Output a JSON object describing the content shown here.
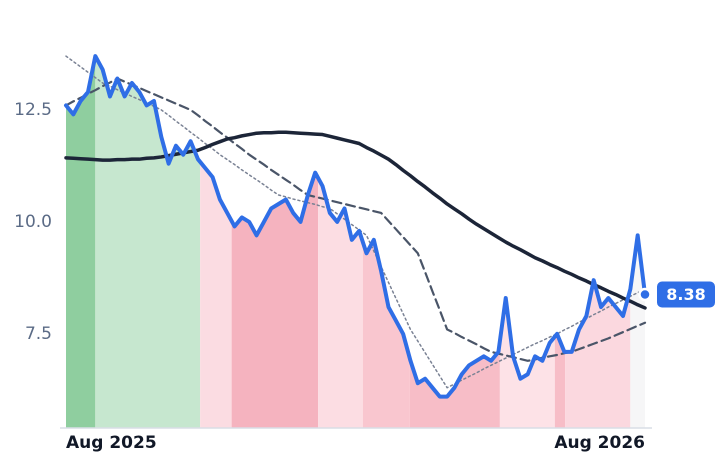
{
  "chart_data": {
    "type": "line",
    "categories": [
      "Aug 2025",
      null,
      null,
      null,
      null,
      null,
      null,
      null,
      null,
      null,
      null,
      null,
      null,
      null,
      null,
      null,
      null,
      null,
      null,
      null,
      null,
      null,
      null,
      null,
      null,
      null,
      null,
      null,
      null,
      null,
      null,
      null,
      null,
      null,
      null,
      null,
      null,
      null,
      null,
      null,
      null,
      null,
      null,
      null,
      null,
      null,
      null,
      null,
      null,
      null,
      null,
      null,
      null,
      null,
      null,
      null,
      null,
      null,
      null,
      null,
      null,
      null,
      null,
      null,
      null,
      null,
      null,
      null,
      null,
      null,
      null,
      null,
      null,
      null,
      null,
      null,
      null,
      null,
      null,
      "Aug 2026"
    ],
    "ylim": [
      5.4,
      14.06
    ],
    "yticks": [
      7.5,
      {
        "value": 10,
        "label": "10.0"
      },
      12.5
    ],
    "grid": false,
    "series": [
      {
        "color": "#2f6ee6",
        "width": 4,
        "dash": "solid",
        "values": [
          12.6,
          12.4,
          12.7,
          12.9,
          13.7,
          13.4,
          12.8,
          13.2,
          12.8,
          13.1,
          12.9,
          12.6,
          12.7,
          11.9,
          11.3,
          11.7,
          11.5,
          11.8,
          11.4,
          11.2,
          11.0,
          10.5,
          10.2,
          9.9,
          10.1,
          10.0,
          9.7,
          10.0,
          10.3,
          10.4,
          10.5,
          10.2,
          10.0,
          10.6,
          11.1,
          10.8,
          10.2,
          10.0,
          10.3,
          9.6,
          9.8,
          9.3,
          9.6,
          8.9,
          8.1,
          7.8,
          7.5,
          6.9,
          6.4,
          6.5,
          6.3,
          6.1,
          6.1,
          6.3,
          6.6,
          6.8,
          6.9,
          7.0,
          6.9,
          7.1,
          8.3,
          7.0,
          6.5,
          6.6,
          7.0,
          6.9,
          7.3,
          7.5,
          7.1,
          7.1,
          7.6,
          7.9,
          8.7,
          8.1,
          8.3,
          8.1,
          7.9,
          8.5,
          9.7,
          8.38
        ]
      },
      {
        "color": "#1c2538",
        "width": 3.5,
        "dash": "solid",
        "values": [
          11.43,
          11.42,
          11.41,
          11.4,
          11.39,
          11.38,
          11.38,
          11.39,
          11.39,
          11.4,
          11.4,
          11.42,
          11.43,
          11.45,
          11.48,
          11.51,
          11.54,
          11.57,
          11.6,
          11.66,
          11.73,
          11.79,
          11.85,
          11.88,
          11.92,
          11.95,
          11.98,
          11.99,
          11.99,
          12.0,
          12.0,
          11.99,
          11.98,
          11.97,
          11.96,
          11.95,
          11.91,
          11.87,
          11.83,
          11.79,
          11.75,
          11.66,
          11.58,
          11.49,
          11.4,
          11.28,
          11.15,
          11.03,
          10.9,
          10.78,
          10.65,
          10.53,
          10.4,
          10.29,
          10.18,
          10.06,
          9.95,
          9.85,
          9.75,
          9.65,
          9.55,
          9.46,
          9.38,
          9.29,
          9.2,
          9.13,
          9.05,
          8.98,
          8.9,
          8.83,
          8.75,
          8.68,
          8.6,
          8.53,
          8.45,
          8.38,
          8.3,
          8.23,
          8.15,
          8.08
        ]
      },
      {
        "color": "#4a5568",
        "width": 2.2,
        "dash": "dashed",
        "values": [
          12.6,
          12.69,
          12.77,
          12.86,
          12.94,
          13.03,
          13.11,
          13.2,
          13.13,
          13.06,
          12.99,
          12.92,
          12.85,
          12.78,
          12.71,
          12.64,
          12.57,
          12.5,
          12.38,
          12.25,
          12.13,
          12.0,
          11.88,
          11.75,
          11.63,
          11.5,
          11.39,
          11.28,
          11.16,
          11.05,
          10.94,
          10.83,
          10.71,
          10.6,
          10.56,
          10.52,
          10.48,
          10.44,
          10.4,
          10.36,
          10.32,
          10.28,
          10.24,
          10.2,
          10.02,
          9.84,
          9.66,
          9.48,
          9.3,
          8.88,
          8.45,
          8.03,
          7.6,
          7.52,
          7.43,
          7.35,
          7.27,
          7.18,
          7.1,
          7.06,
          7.02,
          6.98,
          6.94,
          6.9,
          6.93,
          6.97,
          7.0,
          7.03,
          7.07,
          7.1,
          7.16,
          7.22,
          7.28,
          7.34,
          7.4,
          7.47,
          7.54,
          7.61,
          7.68,
          7.75
        ]
      },
      {
        "color": "#7a8294",
        "width": 1.5,
        "dash": "dotted",
        "values": [
          13.7,
          13.58,
          13.46,
          13.34,
          13.22,
          13.1,
          13.03,
          12.95,
          12.88,
          12.8,
          12.73,
          12.65,
          12.58,
          12.5,
          12.38,
          12.25,
          12.13,
          12.0,
          11.88,
          11.75,
          11.63,
          11.5,
          11.39,
          11.28,
          11.16,
          11.05,
          10.94,
          10.83,
          10.71,
          10.6,
          10.56,
          10.51,
          10.47,
          10.43,
          10.39,
          10.34,
          10.3,
          10.18,
          10.06,
          9.94,
          9.82,
          9.7,
          9.35,
          9.0,
          8.65,
          8.3,
          7.95,
          7.6,
          7.34,
          7.08,
          6.82,
          6.56,
          6.3,
          6.38,
          6.47,
          6.55,
          6.63,
          6.72,
          6.8,
          6.88,
          6.96,
          7.04,
          7.12,
          7.2,
          7.28,
          7.35,
          7.43,
          7.5,
          7.59,
          7.67,
          7.76,
          7.84,
          7.93,
          8.01,
          8.1,
          8.18,
          8.26,
          8.34,
          8.42,
          8.5
        ]
      }
    ],
    "regions": [
      {
        "from": 0,
        "to": 4,
        "color": "#8fce9f"
      },
      {
        "from": 4,
        "to": 18.3,
        "color": "#c6e7cf"
      },
      {
        "from": 18.3,
        "to": 22.6,
        "color": "#fbdce2"
      },
      {
        "from": 22.6,
        "to": 34.4,
        "color": "#f5b3bf"
      },
      {
        "from": 34.4,
        "to": 40.5,
        "color": "#fcdde3"
      },
      {
        "from": 40.5,
        "to": 46.9,
        "color": "#f9c6cf"
      },
      {
        "from": 46.9,
        "to": 59.2,
        "color": "#f7bdc7"
      },
      {
        "from": 59.2,
        "to": 66.7,
        "color": "#fde2e7"
      },
      {
        "from": 66.7,
        "to": 68.1,
        "color": "#f7bdc7"
      },
      {
        "from": 68.1,
        "to": 77,
        "color": "#fbd8df"
      },
      {
        "from": 77,
        "to": 79,
        "color": "#f6f6f7"
      }
    ]
  }
}
